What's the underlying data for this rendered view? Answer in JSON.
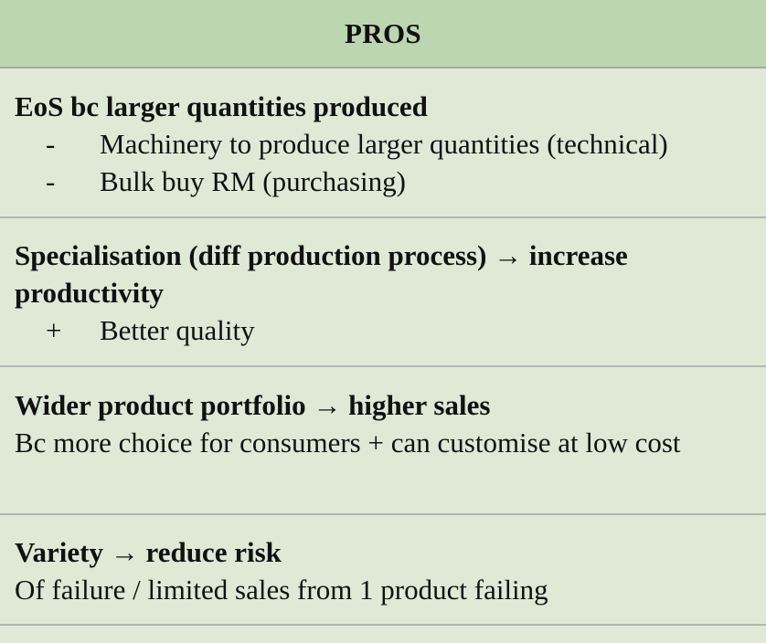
{
  "header": {
    "title": "PROS"
  },
  "rows": [
    {
      "title": "EoS bc larger quantities produced",
      "bullets": [
        {
          "mark": "-",
          "text": "Machinery to produce larger quantities (technical)"
        },
        {
          "mark": "-",
          "text": "Bulk buy RM (purchasing)"
        }
      ]
    },
    {
      "title": "Specialisation (diff production process) → increase productivity",
      "bullets": [
        {
          "mark": "+",
          "text": "Better quality"
        }
      ]
    },
    {
      "title": "Wider product portfolio → higher sales",
      "text": "Bc more choice for consumers + can customise at low cost"
    },
    {
      "title": "Variety → reduce risk",
      "text": "Of failure / limited sales from 1 product failing"
    }
  ]
}
